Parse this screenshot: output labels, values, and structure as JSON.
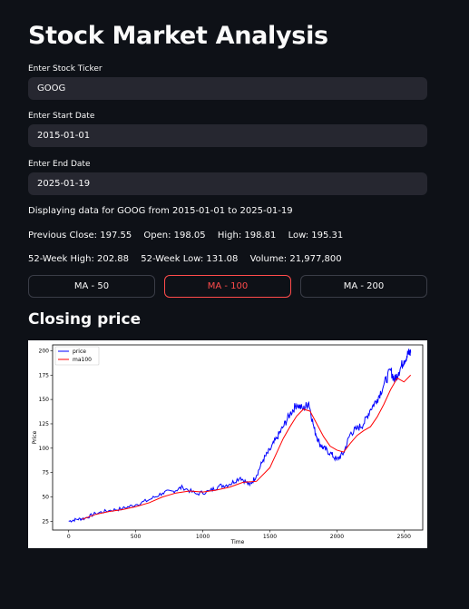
{
  "page": {
    "title": "Stock Market Analysis"
  },
  "ticker": {
    "label": "Enter Stock Ticker",
    "value": "GOOG"
  },
  "start_date": {
    "label": "Enter Start Date",
    "value": "2015-01-01"
  },
  "end_date": {
    "label": "Enter End Date",
    "value": "2025-01-19"
  },
  "info": {
    "displaying": "Displaying data for GOOG from 2015-01-01 to 2025-01-19",
    "previous_close": "Previous Close: 197.55",
    "open": "Open: 198.05",
    "high": "High: 198.81",
    "low": "Low: 195.31",
    "week52_high": "52-Week High: 202.88",
    "week52_low": "52-Week Low: 131.08",
    "volume": "Volume: 21,977,800"
  },
  "buttons": [
    {
      "label": "MA - 50",
      "active": false
    },
    {
      "label": "MA - 100",
      "active": true
    },
    {
      "label": "MA - 200",
      "active": false
    }
  ],
  "section": {
    "title": "Closing price"
  },
  "colors": {
    "accent": "#ff4b4b",
    "price_line": "#0000ff",
    "ma_line": "#ff0000",
    "background": "#0e1117"
  },
  "chart_data": {
    "type": "line",
    "xlabel": "Time",
    "ylabel": "Price",
    "xlim": [
      -120,
      2640
    ],
    "ylim": [
      16,
      206
    ],
    "xticks": [
      0,
      500,
      1000,
      1500,
      2000,
      2500
    ],
    "yticks": [
      25,
      50,
      75,
      100,
      125,
      150,
      175,
      200
    ],
    "legend_position": "top-left",
    "series": [
      {
        "name": "price",
        "x": [
          0,
          60,
          120,
          200,
          300,
          400,
          500,
          600,
          700,
          780,
          850,
          950,
          1050,
          1120,
          1200,
          1280,
          1350,
          1400,
          1450,
          1500,
          1550,
          1600,
          1650,
          1700,
          1750,
          1790,
          1830,
          1870,
          1900,
          1950,
          2000,
          2050,
          2100,
          2150,
          2200,
          2250,
          2300,
          2350,
          2400,
          2430,
          2460,
          2500,
          2530,
          2550
        ],
        "y": [
          25,
          27,
          28,
          33,
          36,
          38,
          42,
          47,
          54,
          56,
          60,
          53,
          56,
          61,
          63,
          70,
          62,
          72,
          88,
          98,
          110,
          122,
          135,
          145,
          140,
          147,
          120,
          105,
          100,
          95,
          88,
          95,
          115,
          120,
          125,
          140,
          150,
          165,
          180,
          170,
          178,
          190,
          197,
          198
        ]
      },
      {
        "name": "ma100",
        "x": [
          100,
          200,
          300,
          400,
          500,
          600,
          700,
          800,
          900,
          1000,
          1100,
          1200,
          1300,
          1400,
          1500,
          1550,
          1600,
          1650,
          1700,
          1750,
          1800,
          1850,
          1900,
          1950,
          2000,
          2050,
          2100,
          2150,
          2200,
          2250,
          2300,
          2350,
          2400,
          2450,
          2500,
          2550
        ],
        "y": [
          27,
          32,
          35,
          37,
          40,
          44,
          50,
          54,
          56,
          55,
          57,
          60,
          65,
          66,
          80,
          95,
          110,
          122,
          133,
          140,
          138,
          125,
          112,
          102,
          98,
          96,
          105,
          113,
          118,
          122,
          132,
          145,
          160,
          172,
          168,
          175
        ]
      }
    ]
  }
}
